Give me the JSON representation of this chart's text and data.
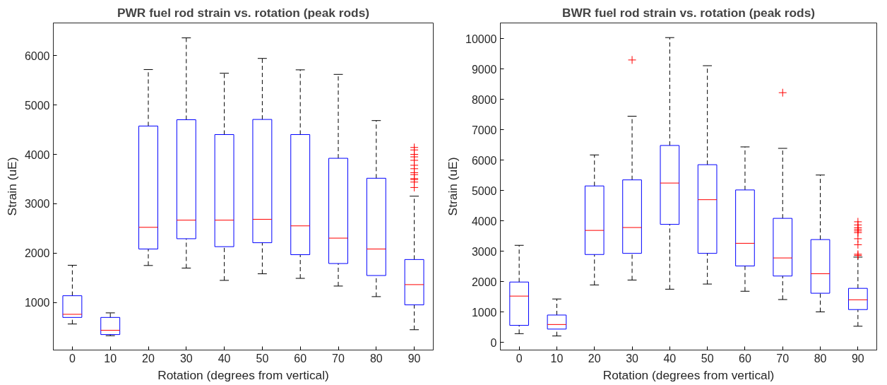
{
  "chart_data": [
    {
      "type": "box",
      "title": "PWR fuel rod strain vs. rotation (peak rods)",
      "xlabel": "Rotation (degrees from vertical)",
      "ylabel": "Strain (uE)",
      "categories": [
        "0",
        "10",
        "20",
        "30",
        "40",
        "50",
        "60",
        "70",
        "80",
        "90"
      ],
      "ylim": [
        40,
        6660
      ],
      "yticks": [
        1000,
        2000,
        3000,
        4000,
        5000,
        6000
      ],
      "marker": "cross",
      "series": [
        {
          "color": "#0000ff",
          "boxes": [
            {
              "low": 567,
              "q1": 700,
              "median": 763,
              "q3": 1139,
              "high": 1756
            },
            {
              "low": 330,
              "q1": 353,
              "median": 440,
              "q3": 700,
              "high": 792
            },
            {
              "low": 1751,
              "q1": 2085,
              "median": 2524,
              "q3": 4574,
              "high": 5717
            },
            {
              "low": 1699,
              "q1": 2293,
              "median": 2669,
              "q3": 4701,
              "high": 6358
            },
            {
              "low": 1450,
              "q1": 2132,
              "median": 2669,
              "q3": 4401,
              "high": 5642
            },
            {
              "low": 1583,
              "q1": 2212,
              "median": 2686,
              "q3": 4707,
              "high": 5942
            },
            {
              "low": 1491,
              "q1": 1970,
              "median": 2553,
              "q3": 4401,
              "high": 5711
            },
            {
              "low": 1335,
              "q1": 1791,
              "median": 2305,
              "q3": 3921,
              "high": 5619
            },
            {
              "low": 1121,
              "q1": 1548,
              "median": 2085,
              "q3": 3517,
              "high": 4684
            },
            {
              "low": 451,
              "q1": 954,
              "median": 1364,
              "q3": 1872,
              "high": 3154,
              "outliers": [
                4140,
                4090,
                4000,
                3950,
                3880,
                3780,
                3710,
                3630,
                3590,
                3510,
                3490,
                3440,
                3330
              ]
            }
          ]
        }
      ]
    },
    {
      "type": "box",
      "title": "BWR fuel rod strain vs. rotation (peak rods)",
      "xlabel": "Rotation (degrees from vertical)",
      "ylabel": "Strain (uE)",
      "categories": [
        "0",
        "10",
        "20",
        "30",
        "40",
        "50",
        "60",
        "70",
        "80",
        "90"
      ],
      "ylim": [
        -255,
        10520
      ],
      "yticks": [
        0,
        1000,
        2000,
        3000,
        4000,
        5000,
        6000,
        7000,
        8000,
        9000,
        10000
      ],
      "marker": "cross",
      "series": [
        {
          "color": "#0000ff",
          "boxes": [
            {
              "low": 284,
              "q1": 558,
              "median": 1522,
              "q3": 1985,
              "high": 3195
            },
            {
              "low": 208,
              "q1": 435,
              "median": 586,
              "q3": 898,
              "high": 1427
            },
            {
              "low": 1890,
              "q1": 2892,
              "median": 3686,
              "q3": 5151,
              "high": 6172
            },
            {
              "low": 2051,
              "q1": 2930,
              "median": 3781,
              "q3": 5350,
              "high": 7448,
              "outliers": [
                9301
              ]
            },
            {
              "low": 1749,
              "q1": 3885,
              "median": 5246,
              "q3": 6484,
              "high": 10038
            },
            {
              "low": 1919,
              "q1": 2930,
              "median": 4698,
              "q3": 5851,
              "high": 9112
            },
            {
              "low": 1682,
              "q1": 2514,
              "median": 3261,
              "q3": 5019,
              "high": 6437
            },
            {
              "low": 1408,
              "q1": 2183,
              "median": 2779,
              "q3": 4083,
              "high": 6389,
              "outliers": [
                8223
              ]
            },
            {
              "low": 1002,
              "q1": 1616,
              "median": 2259,
              "q3": 3384,
              "high": 5510
            },
            {
              "low": 529,
              "q1": 1078,
              "median": 1399,
              "q3": 1777,
              "high": 2807,
              "outliers": [
                3970,
                3866,
                3771,
                3715,
                3667,
                3611,
                3412,
                3214,
                2902,
                2864
              ]
            }
          ]
        }
      ]
    }
  ]
}
